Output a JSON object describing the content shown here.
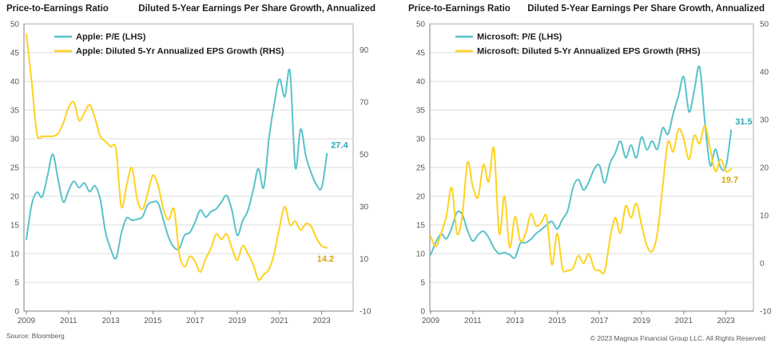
{
  "footer": {
    "source": "Source: Bloomberg",
    "copyright": "© 2023 Magnus Financial Group LLC. All Rights Reserved"
  },
  "colors": {
    "teal_line": "#59C2CC",
    "yellow_line": "#FFD21E",
    "teal_label": "#2FA8B8",
    "gold_label": "#D9A40D",
    "grid": "#DBDBDB",
    "border": "#ABABAB",
    "axis_line": "#7F7F7F",
    "tick_text": "#595959",
    "title_text": "#1F1F1F"
  },
  "chart_data": [
    {
      "type": "line",
      "title_left": "Price-to-Earnings Ratio",
      "title_right": "Diluted 5-Year Earnings Per Share Growth, Annualized",
      "legend_position": "top-left-inside",
      "grid": true,
      "x_ticks": [
        2009,
        2011,
        2013,
        2015,
        2017,
        2019,
        2021,
        2023
      ],
      "left_axis": {
        "min": 0,
        "max": 50,
        "ticks": [
          0,
          5,
          10,
          15,
          20,
          25,
          30,
          35,
          40,
          45,
          50
        ]
      },
      "right_axis": {
        "min": -10,
        "max": 100,
        "ticks": [
          90,
          70,
          50,
          30,
          10,
          -10
        ]
      },
      "x": [
        2009,
        2009.25,
        2009.5,
        2009.75,
        2010,
        2010.25,
        2010.5,
        2010.75,
        2011,
        2011.25,
        2011.5,
        2011.75,
        2012,
        2012.25,
        2012.5,
        2012.75,
        2013,
        2013.25,
        2013.5,
        2013.75,
        2014,
        2014.25,
        2014.5,
        2014.75,
        2015,
        2015.25,
        2015.5,
        2015.75,
        2016,
        2016.25,
        2016.5,
        2016.75,
        2017,
        2017.25,
        2017.5,
        2017.75,
        2018,
        2018.25,
        2018.5,
        2018.75,
        2019,
        2019.25,
        2019.5,
        2019.75,
        2020,
        2020.25,
        2020.5,
        2020.75,
        2021,
        2021.25,
        2021.5,
        2021.75,
        2022,
        2022.25,
        2022.5,
        2022.75,
        2023,
        2023.25
      ],
      "series": [
        {
          "name": "Apple: P/E (LHS)",
          "axis": "left",
          "color": "#59C2CC",
          "end_label": "27.4",
          "end_label_color": "#2FA8B8",
          "values": [
            12.5,
            18.5,
            20.7,
            19.9,
            23.5,
            27.3,
            23,
            19,
            21,
            22.6,
            21.5,
            22.3,
            20.8,
            21.8,
            19.5,
            13.8,
            10.8,
            9.2,
            13.5,
            16.2,
            15.8,
            16,
            16.4,
            18.5,
            19,
            18.8,
            15.8,
            12.8,
            11.1,
            10.9,
            13.2,
            13.7,
            15.5,
            17.6,
            16.4,
            17.3,
            17.8,
            19,
            20.1,
            17.5,
            13.2,
            15.7,
            17.5,
            21,
            24.8,
            21.5,
            30,
            36,
            40.4,
            37.3,
            41.7,
            25,
            31.7,
            27,
            24.1,
            22,
            21.5,
            27.4
          ]
        },
        {
          "name": "Apple: Diluted 5-Yr Annualized EPS Growth (RHS)",
          "axis": "right",
          "color": "#FFD21E",
          "end_label": "14.2",
          "end_label_color": "#D9A40D",
          "values": [
            96,
            78,
            58,
            57,
            57,
            57,
            58,
            62,
            68,
            70,
            63,
            66,
            69,
            64,
            57,
            55,
            53,
            52,
            30,
            38,
            45,
            33,
            29,
            35,
            42,
            38,
            29,
            25,
            29,
            12,
            7,
            11,
            9,
            5,
            10,
            14,
            19.5,
            17.5,
            19.5,
            14,
            9.5,
            15,
            12,
            8,
            2,
            4,
            6,
            12,
            22,
            30,
            23,
            24.5,
            21,
            23.5,
            22.5,
            18,
            15,
            14.2
          ]
        }
      ]
    },
    {
      "type": "line",
      "title_left": "Price-to-Earnings Ratio",
      "title_right": "Diluted 5-Year Earnings Per Share Growth, Annualized",
      "legend_position": "top-left-inside",
      "grid": true,
      "x_ticks": [
        2009,
        2011,
        2013,
        2015,
        2017,
        2019,
        2021,
        2023
      ],
      "left_axis": {
        "min": 0,
        "max": 50,
        "ticks": [
          0,
          5,
          10,
          15,
          20,
          25,
          30,
          35,
          40,
          45,
          50
        ]
      },
      "right_axis": {
        "min": -10,
        "max": 50,
        "ticks": [
          50,
          40,
          30,
          20,
          10,
          0,
          -10
        ]
      },
      "x": [
        2009,
        2009.25,
        2009.5,
        2009.75,
        2010,
        2010.25,
        2010.5,
        2010.75,
        2011,
        2011.25,
        2011.5,
        2011.75,
        2012,
        2012.25,
        2012.5,
        2012.75,
        2013,
        2013.25,
        2013.5,
        2013.75,
        2014,
        2014.25,
        2014.5,
        2014.75,
        2015,
        2015.25,
        2015.5,
        2015.75,
        2016,
        2016.25,
        2016.5,
        2016.75,
        2017,
        2017.25,
        2017.5,
        2017.75,
        2018,
        2018.25,
        2018.5,
        2018.75,
        2019,
        2019.25,
        2019.5,
        2019.75,
        2020,
        2020.25,
        2020.5,
        2020.75,
        2021,
        2021.25,
        2021.5,
        2021.75,
        2022,
        2022.25,
        2022.5,
        2022.75,
        2023,
        2023.25
      ],
      "series": [
        {
          "name": "Microsoft: P/E (LHS)",
          "axis": "left",
          "color": "#59C2CC",
          "end_label": "31.5",
          "end_label_color": "#2FA8B8",
          "values": [
            9.8,
            12,
            13.4,
            12.6,
            14.5,
            17.2,
            16.8,
            14,
            12.2,
            13.3,
            13.9,
            12.8,
            11,
            10,
            10.2,
            9.8,
            9.3,
            11.8,
            11.9,
            12.5,
            13.5,
            14.2,
            15,
            15.6,
            14.3,
            16,
            17.5,
            21.5,
            22.9,
            21.1,
            22.5,
            24.7,
            25.4,
            22.3,
            25.7,
            27.5,
            29.6,
            26.7,
            28.9,
            26.7,
            30.3,
            28.1,
            29.6,
            28.2,
            31.9,
            30.8,
            34.4,
            37.5,
            40.8,
            34.7,
            38.5,
            42.5,
            33,
            25.4,
            28.2,
            25,
            25.2,
            31.5
          ]
        },
        {
          "name": "Microsoft: Diluted 5-Yr Annualized EPS Growth (RHS)",
          "axis": "right",
          "color": "#FFD21E",
          "end_label": "19.7",
          "end_label_color": "#D9A40D",
          "values": [
            5.6,
            3.5,
            6.3,
            10,
            15.8,
            6.2,
            10,
            21.1,
            16,
            13.8,
            20.6,
            17,
            24,
            6.2,
            14,
            3.3,
            9.7,
            4.7,
            6.2,
            10.3,
            7.8,
            8.5,
            9.7,
            -0.3,
            6.2,
            -1.1,
            -1.5,
            -1,
            1.6,
            0,
            2,
            -1.1,
            -1.5,
            -1.7,
            5,
            9.5,
            6.3,
            12,
            9.5,
            12.5,
            8,
            3.7,
            2.5,
            6.3,
            16,
            25.3,
            23.3,
            28,
            26,
            21.7,
            26.7,
            25,
            28.7,
            24,
            19.2,
            21.7,
            19.2,
            19.7
          ]
        }
      ]
    }
  ]
}
